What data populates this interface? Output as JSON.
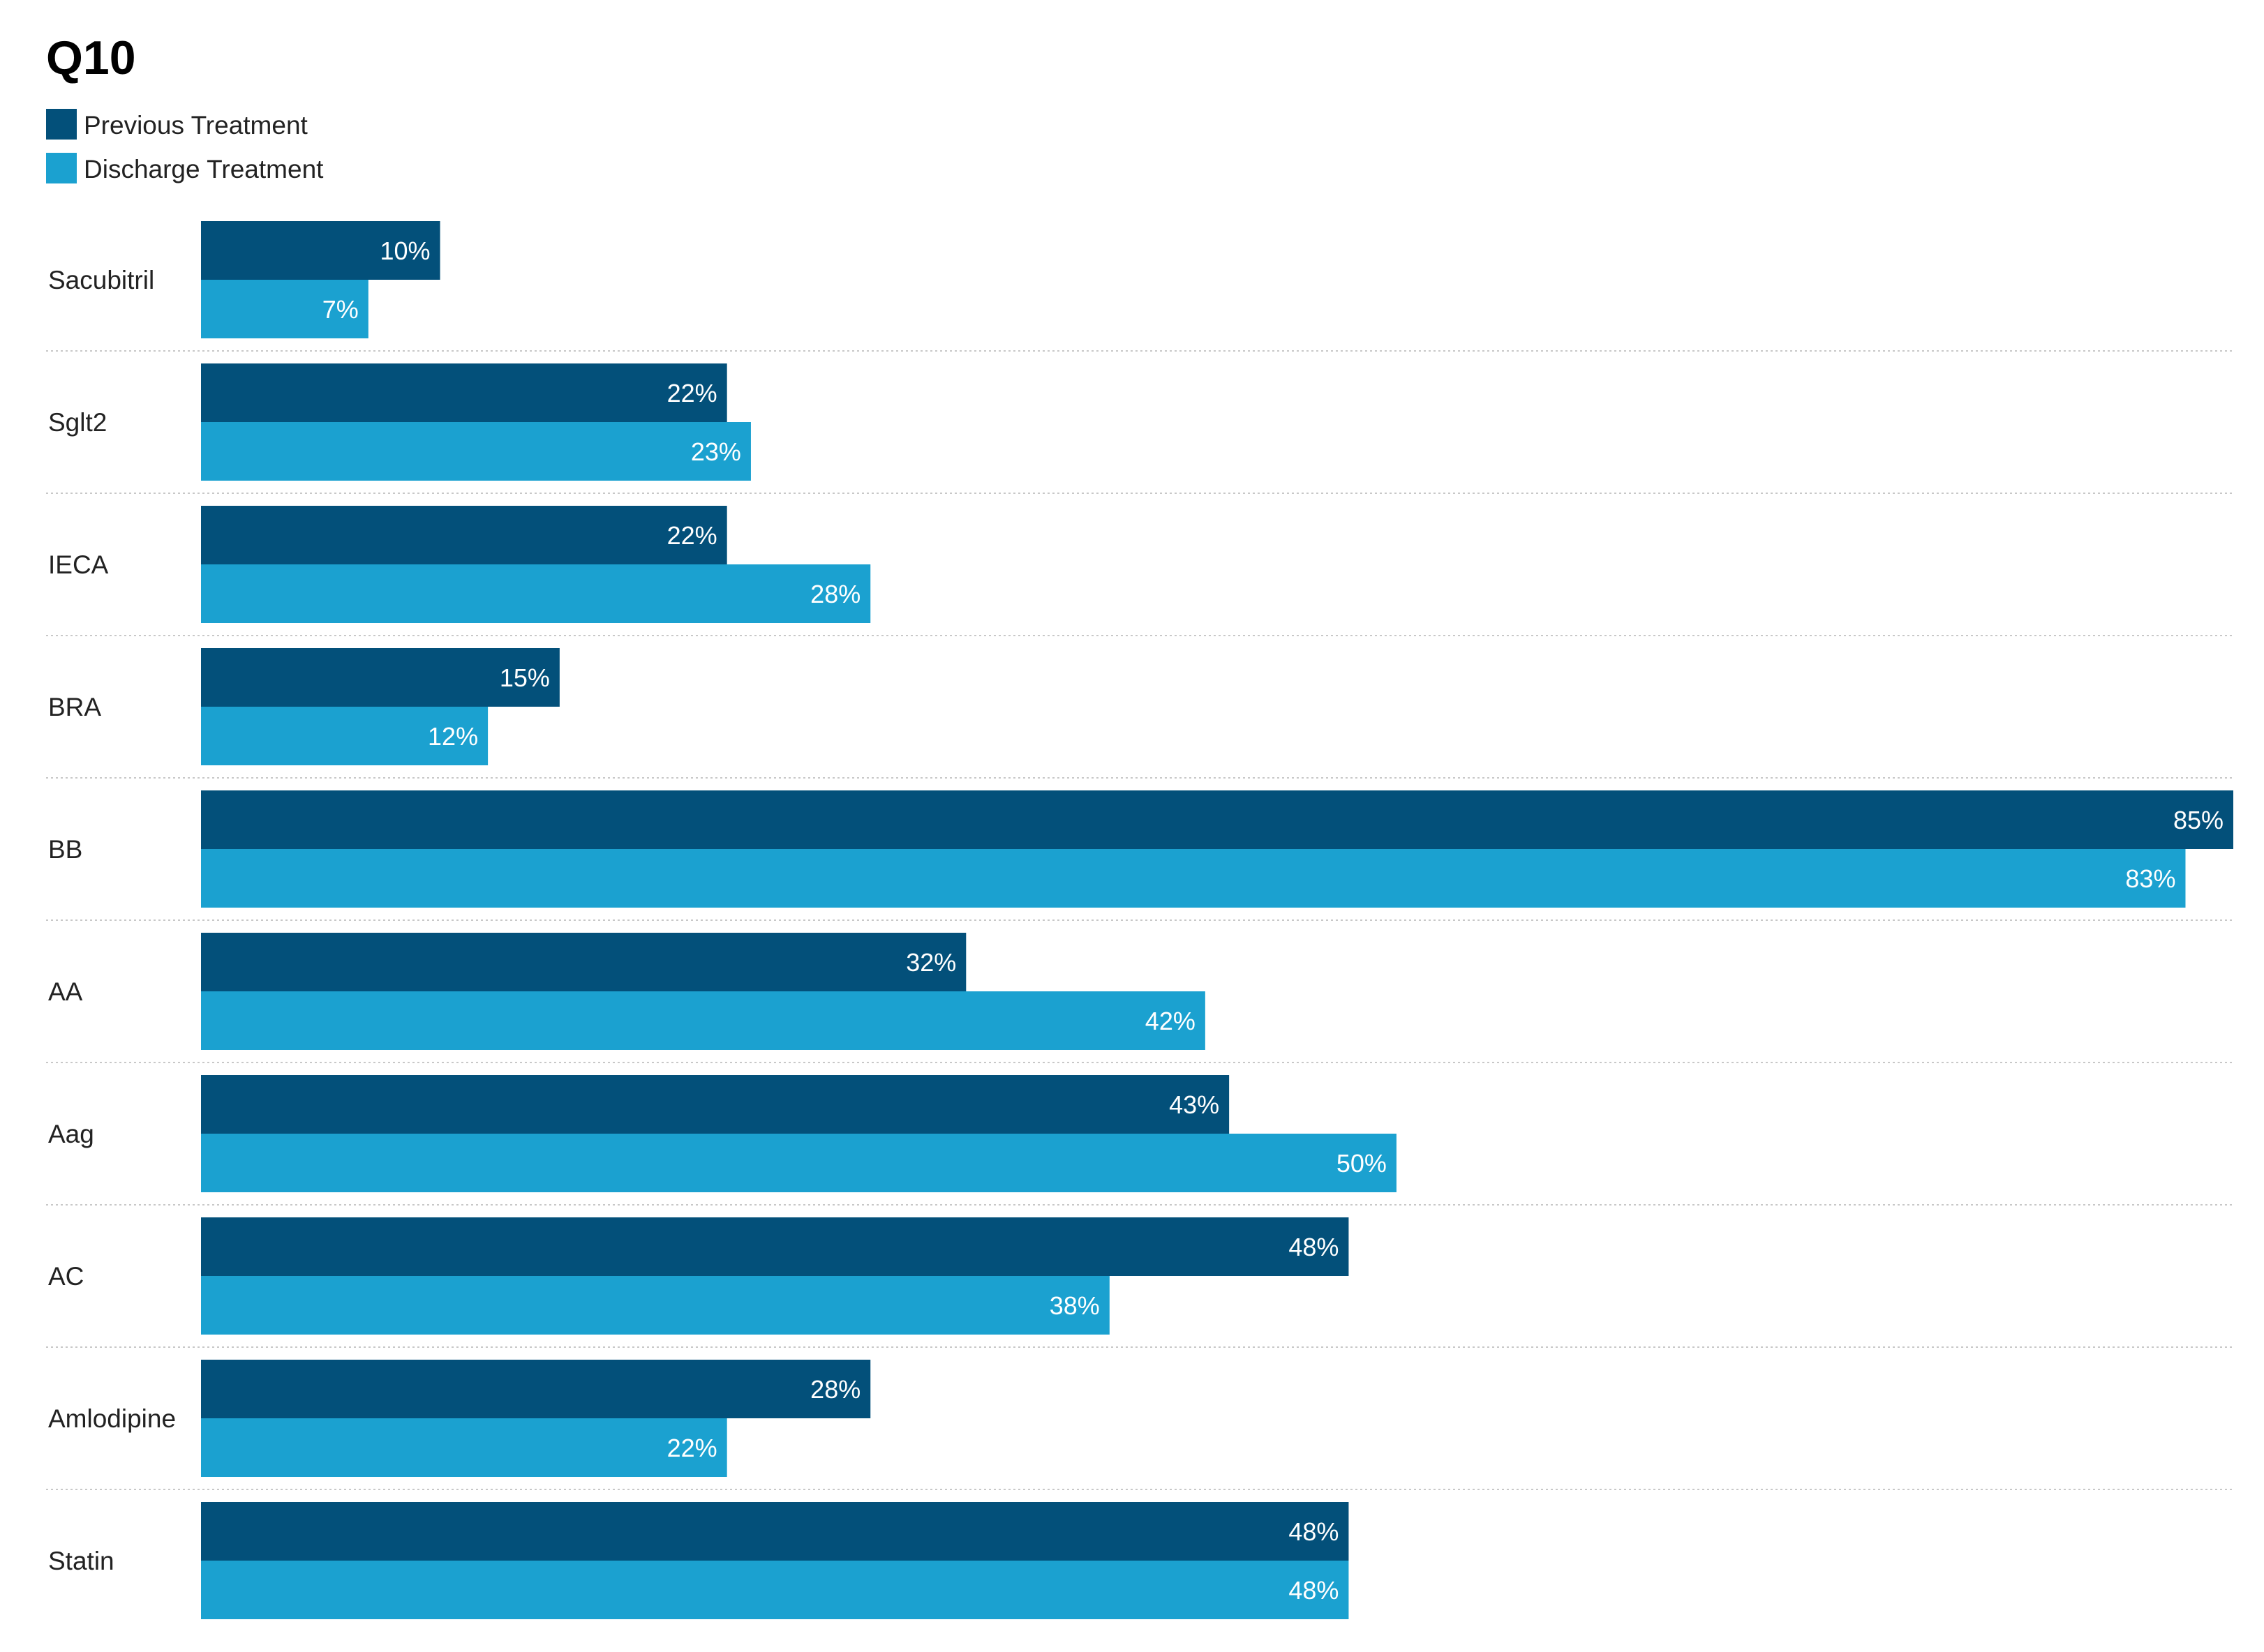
{
  "chart_data": {
    "type": "bar",
    "orientation": "horizontal",
    "title": "Q10",
    "categories": [
      "Sacubitril",
      "Sglt2",
      "IECA",
      "BRA",
      "BB",
      "AA",
      "Aag",
      "AC",
      "Amlodipine",
      "Statin"
    ],
    "series": [
      {
        "name": "Previous Treatment",
        "color": "#03507a",
        "values": [
          10,
          22,
          22,
          15,
          85,
          32,
          43,
          48,
          28,
          48
        ],
        "labels": [
          "10%",
          "22%",
          "22%",
          "15%",
          "85%",
          "32%",
          "43%",
          "48%",
          "28%",
          "48%"
        ]
      },
      {
        "name": "Discharge Treatment",
        "color": "#1ba1d0",
        "values": [
          7,
          23,
          28,
          12,
          83,
          42,
          50,
          38,
          22,
          48
        ],
        "labels": [
          "7%",
          "23%",
          "28%",
          "12%",
          "83%",
          "42%",
          "50%",
          "38%",
          "22%",
          "48%"
        ]
      }
    ],
    "value_unit": "%",
    "xlim": [
      0,
      85
    ],
    "legend_position": "top-left",
    "grid": false,
    "row_separators": "dotted"
  }
}
